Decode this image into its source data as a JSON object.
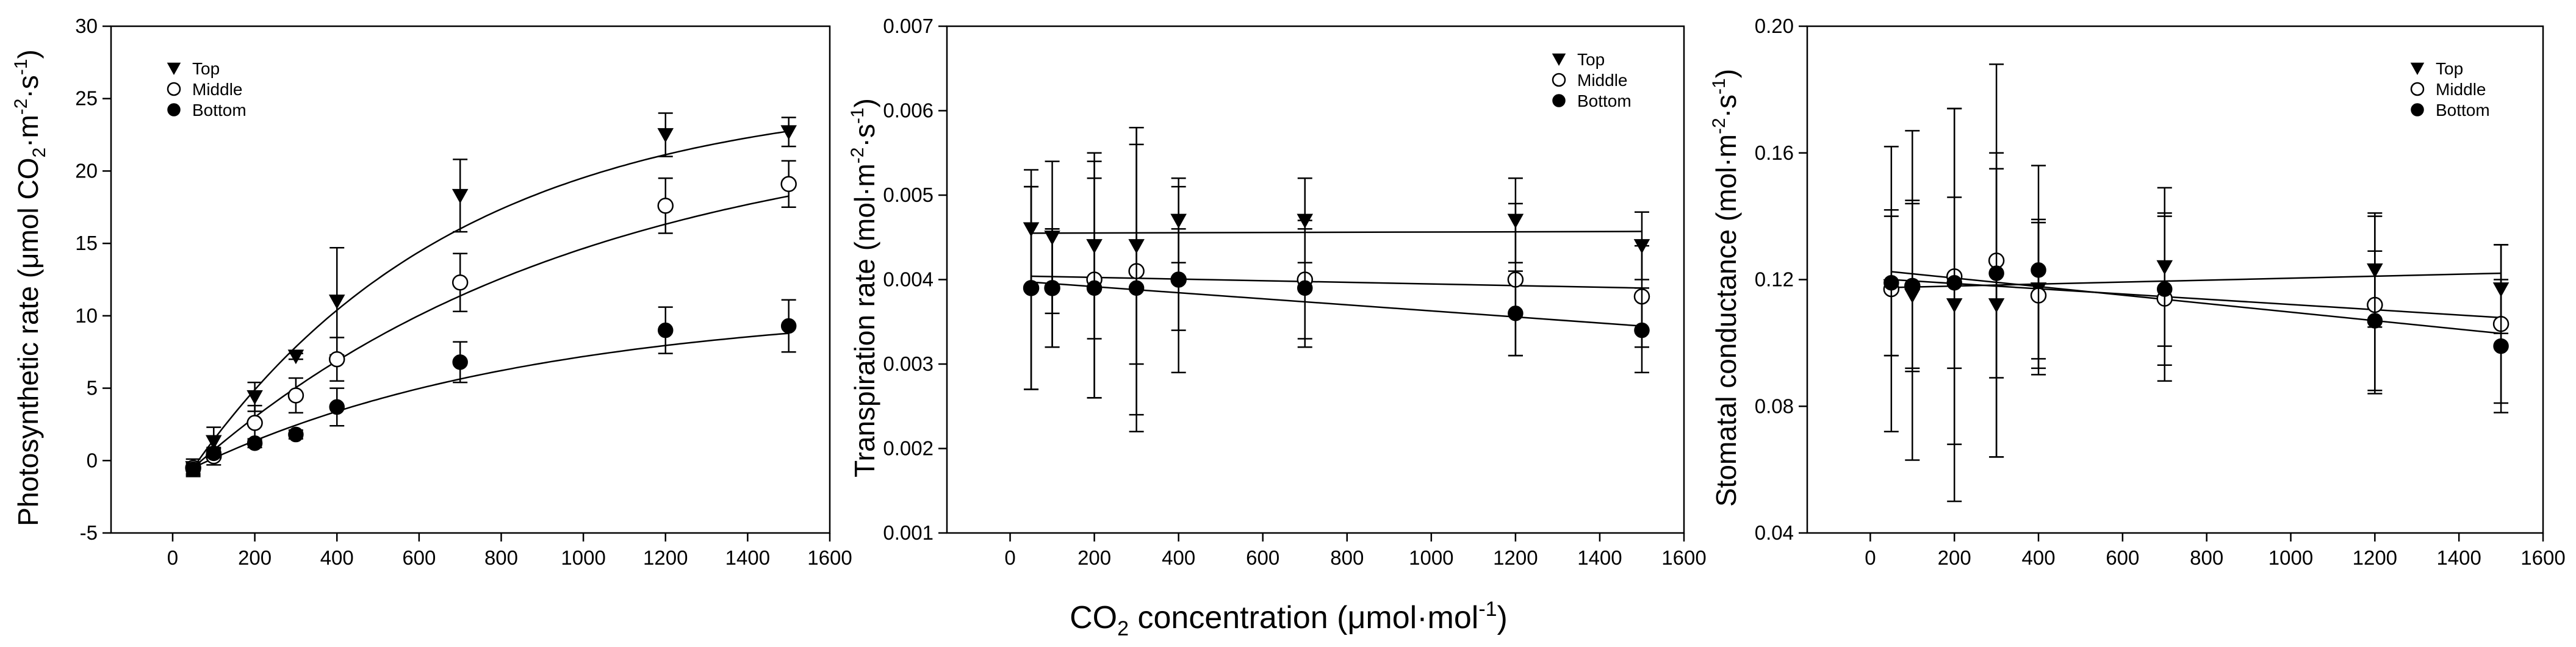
{
  "figure": {
    "shared_xlabel": "CO2 concentration (μmol·mol-1)",
    "shared_xlabel_parts": {
      "pre": "CO",
      "sub": "2",
      "mid": " concentration (μmol·mol",
      "sup": "-1",
      "post": ")"
    }
  },
  "chart_data": [
    {
      "type": "scatter",
      "panel": "photosynthetic",
      "title": "",
      "xlabel": "CO2 concentration (μmol·mol-1)",
      "ylabel": "Photosynthetic rate (μmol CO2·m-2·s-1)",
      "ylabel_parts": {
        "pre": "Photosynthetic rate (μmol CO",
        "sub": "2",
        "mid1": "·m",
        "sup1": "-2",
        "mid2": "·s",
        "sup2": "-1",
        "post": ")"
      },
      "xlim": [
        -150,
        1600
      ],
      "ylim": [
        -5,
        30
      ],
      "xticks": [
        0,
        200,
        400,
        600,
        800,
        1000,
        1200,
        1400,
        1600
      ],
      "yticks": [
        -5,
        0,
        5,
        10,
        15,
        20,
        25,
        30
      ],
      "x": [
        50,
        100,
        200,
        300,
        400,
        700,
        1200,
        1500
      ],
      "series": [
        {
          "name": "Top",
          "marker": "triangle-down",
          "values": [
            -0.5,
            1.3,
            4.4,
            7.2,
            11.0,
            18.3,
            22.5,
            22.7
          ],
          "errors": [
            0.6,
            1.0,
            1.0,
            0.2,
            3.7,
            2.5,
            1.5,
            1.0
          ]
        },
        {
          "name": "Middle",
          "marker": "circle-open",
          "values": [
            -0.5,
            0.3,
            2.6,
            4.5,
            7.0,
            12.3,
            17.6,
            19.1
          ],
          "errors": [
            0.4,
            0.6,
            1.2,
            1.2,
            1.5,
            2.0,
            1.9,
            1.6
          ]
        },
        {
          "name": "Bottom",
          "marker": "circle-filled",
          "values": [
            -0.6,
            0.5,
            1.2,
            1.8,
            3.7,
            6.8,
            9.0,
            9.3
          ],
          "errors": [
            0.4,
            0.3,
            0.3,
            0.3,
            1.3,
            1.4,
            1.6,
            1.8
          ]
        }
      ],
      "fits": [
        {
          "name": "Top",
          "kind": "exponential-rise",
          "A": 26.0,
          "k": 0.00155,
          "x0": 50,
          "x_end": 1500
        },
        {
          "name": "Middle",
          "kind": "exponential-rise",
          "A": 24.0,
          "k": 0.00105,
          "x0": 50,
          "x_end": 1500
        },
        {
          "name": "Bottom",
          "kind": "exponential-rise",
          "A": 11.2,
          "k": 0.00122,
          "x0": 50,
          "x_end": 1500
        }
      ],
      "legend": {
        "position": "top-left",
        "entries": [
          "Top",
          "Middle",
          "Bottom"
        ]
      }
    },
    {
      "type": "scatter",
      "panel": "transpiration",
      "title": "",
      "xlabel": "CO2 concentration (μmol·mol-1)",
      "ylabel": "Transpiration rate (mol·m-2·s-1)",
      "ylabel_parts": {
        "pre": "Transpiration rate (mol·m",
        "sup1": "-2",
        "mid2": "·s",
        "sup2": "-1",
        "post": ")"
      },
      "xlim": [
        -150,
        1600
      ],
      "ylim": [
        0.001,
        0.007
      ],
      "xticks": [
        0,
        200,
        400,
        600,
        800,
        1000,
        1200,
        1400,
        1600
      ],
      "yticks": [
        "0.001",
        "0.002",
        "0.003",
        "0.004",
        "0.005",
        "0.006",
        "0.007"
      ],
      "x": [
        50,
        100,
        200,
        300,
        400,
        700,
        1200,
        1500
      ],
      "series": [
        {
          "name": "Top",
          "marker": "triangle-down",
          "values": [
            0.0046,
            0.0045,
            0.0044,
            0.0044,
            0.0047,
            0.0047,
            0.0047,
            0.0044
          ],
          "errors": [
            0.0007,
            0.0009,
            0.0011,
            0.0014,
            0.0005,
            0.0005,
            0.0005,
            0.0004
          ]
        },
        {
          "name": "Middle",
          "marker": "circle-open",
          "values": [
            0.0039,
            0.0039,
            0.004,
            0.0041,
            0.004,
            0.004,
            0.004,
            0.0038
          ],
          "errors": [
            0.0012,
            0.0007,
            0.0014,
            0.0017,
            0.0011,
            0.0007,
            0.0009,
            0.0006
          ]
        },
        {
          "name": "Bottom",
          "marker": "circle-filled",
          "values": [
            0.0039,
            0.0039,
            0.0039,
            0.0039,
            0.004,
            0.0039,
            0.0036,
            0.0034
          ],
          "errors": [
            0.0012,
            0.0007,
            0.0013,
            0.0017,
            0.0006,
            0.0007,
            0.0005,
            0.0005
          ]
        }
      ],
      "fits": [
        {
          "name": "Top",
          "kind": "linear",
          "x0": 50,
          "y0": 0.00455,
          "x1": 1500,
          "y1": 0.00457
        },
        {
          "name": "Middle",
          "kind": "linear",
          "x0": 50,
          "y0": 0.00404,
          "x1": 1500,
          "y1": 0.0039
        },
        {
          "name": "Bottom",
          "kind": "linear",
          "x0": 50,
          "y0": 0.00397,
          "x1": 1500,
          "y1": 0.00345
        }
      ],
      "legend": {
        "position": "top-right",
        "entries": [
          "Top",
          "Middle",
          "Bottom"
        ]
      }
    },
    {
      "type": "scatter",
      "panel": "stomatal",
      "title": "",
      "xlabel": "CO2 concentration (μmol·mol-1)",
      "ylabel": "Stomatal conductance (mol·m-2·s-1)",
      "ylabel_parts": {
        "pre": "Stomatal conductance (mol·m",
        "sup1": "-2",
        "mid2": "·s",
        "sup2": "-1",
        "post": ")"
      },
      "xlim": [
        -150,
        1600
      ],
      "ylim": [
        0.04,
        0.2
      ],
      "xticks": [
        0,
        200,
        400,
        600,
        800,
        1000,
        1200,
        1400,
        1600
      ],
      "yticks": [
        "0.04",
        "0.08",
        "0.12",
        "0.16",
        "0.20"
      ],
      "x": [
        50,
        100,
        200,
        300,
        400,
        700,
        1200,
        1500
      ],
      "series": [
        {
          "name": "Top",
          "marker": "triangle-down",
          "values": [
            0.118,
            0.115,
            0.112,
            0.112,
            0.117,
            0.124,
            0.123,
            0.117
          ],
          "errors": [
            0.022,
            0.052,
            0.062,
            0.048,
            0.022,
            0.025,
            0.018,
            0.014
          ]
        },
        {
          "name": "Middle",
          "marker": "circle-open",
          "values": [
            0.117,
            0.118,
            0.121,
            0.126,
            0.115,
            0.114,
            0.112,
            0.106
          ],
          "errors": [
            0.045,
            0.026,
            0.053,
            0.062,
            0.023,
            0.026,
            0.028,
            0.025
          ]
        },
        {
          "name": "Bottom",
          "marker": "circle-filled",
          "values": [
            0.119,
            0.118,
            0.119,
            0.122,
            0.123,
            0.117,
            0.107,
            0.099
          ],
          "errors": [
            0.023,
            0.027,
            0.027,
            0.033,
            0.033,
            0.024,
            0.022,
            0.021
          ]
        }
      ],
      "fits": [
        {
          "name": "Top",
          "kind": "linear",
          "x0": 50,
          "y0": 0.1175,
          "x1": 1500,
          "y1": 0.122
        },
        {
          "name": "Middle",
          "kind": "linear",
          "x0": 50,
          "y0": 0.12,
          "x1": 1500,
          "y1": 0.108
        },
        {
          "name": "Bottom",
          "kind": "linear",
          "x0": 50,
          "y0": 0.1225,
          "x1": 1500,
          "y1": 0.103
        }
      ],
      "legend": {
        "position": "top-right",
        "entries": [
          "Top",
          "Middle",
          "Bottom"
        ]
      }
    }
  ]
}
